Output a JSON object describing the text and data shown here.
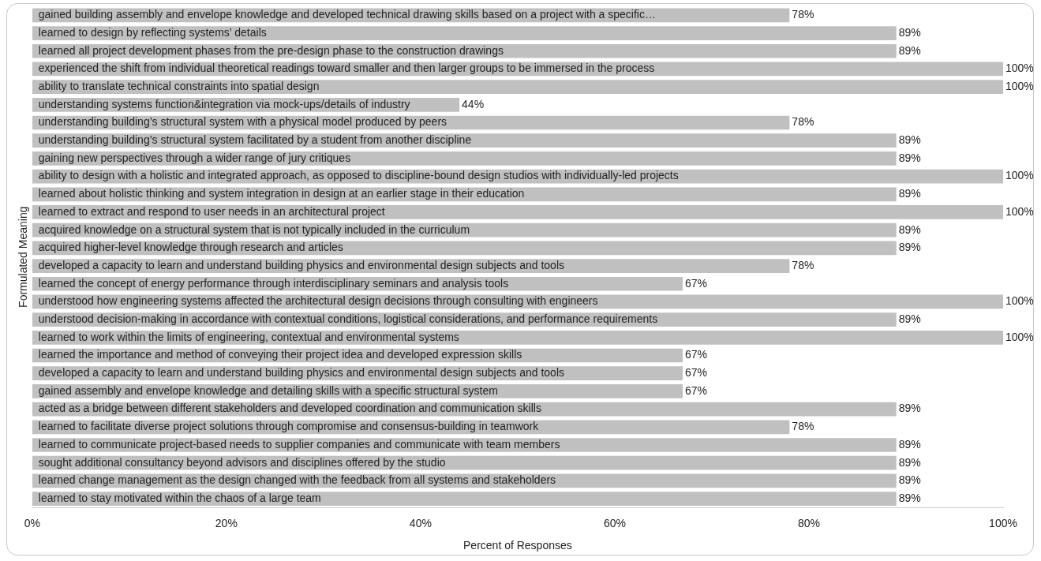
{
  "chart_data": {
    "type": "bar",
    "orientation": "horizontal",
    "xlabel": "Percent of Responses",
    "ylabel": "Formulated Meaning",
    "categories": [
      "gained building assembly and envelope knowledge and developed technical drawing skills based on a project with a specific…",
      "learned to design by reflecting systems’ details",
      "learned all project development phases from the pre-design phase to the construction drawings",
      "experienced the shift from individual theoretical readings toward smaller and then larger groups to be immersed in the process",
      "ability to translate technical constraints into spatial design",
      "understanding systems function&integration via mock-ups/details of industry",
      "understanding building’s structural system with a physical model produced by peers",
      "understanding building’s structural system facilitated by a student from another discipline",
      "gaining new perspectives through a wider range of jury critiques",
      "ability to design with a holistic and integrated approach, as opposed to discipline-bound design studios with individually-led projects",
      "learned about holistic thinking and system integration in design at an earlier stage in their education",
      "learned to extract and respond to user needs in an architectural project",
      "acquired knowledge on a structural system that is not typically included in the curriculum",
      "acquired higher-level knowledge through research and articles",
      "developed a capacity to learn and understand building physics and environmental design subjects and tools",
      "learned the concept of energy performance through interdisciplinary seminars and analysis tools",
      "understood how engineering systems affected the architectural design decisions through consulting with engineers",
      "understood decision-making in accordance with contextual conditions, logistical considerations, and performance requirements",
      "learned to work within the limits of engineering, contextual and environmental systems",
      "learned the importance and method of conveying their project idea and developed expression skills",
      "developed a capacity to learn and understand building physics and environmental design subjects and tools",
      "gained assembly and envelope knowledge and detailing skills with a specific structural system",
      "acted as a bridge between different stakeholders and developed coordination and communication skills",
      "learned to facilitate diverse project solutions through compromise and consensus-building in teamwork",
      "learned to communicate project-based needs to supplier companies and communicate with team members",
      "sought additional consultancy beyond advisors and disciplines offered by the studio",
      "learned change management as the design changed with the feedback from all systems and stakeholders",
      "learned to stay motivated within the chaos of a large team"
    ],
    "values": [
      78,
      89,
      89,
      100,
      100,
      44,
      78,
      89,
      89,
      100,
      89,
      100,
      89,
      89,
      78,
      67,
      100,
      89,
      100,
      67,
      67,
      67,
      89,
      78,
      89,
      89,
      89,
      89
    ],
    "value_labels": [
      "78%",
      "89%",
      "89%",
      "100%",
      "100%",
      "44%",
      "78%",
      "89%",
      "89%",
      "100%",
      "89%",
      "100%",
      "89%",
      "89%",
      "78%",
      "67%",
      "100%",
      "89%",
      "100%",
      "67%",
      "67%",
      "67%",
      "89%",
      "78%",
      "89%",
      "89%",
      "89%",
      "89%"
    ],
    "color": "#c0c0c0",
    "xlim": [
      0,
      100
    ],
    "xticks": [
      {
        "value": 0,
        "label": "0%"
      },
      {
        "value": 20,
        "label": "20%"
      },
      {
        "value": 40,
        "label": "40%"
      },
      {
        "value": 60,
        "label": "60%"
      },
      {
        "value": 80,
        "label": "80%"
      },
      {
        "value": 100,
        "label": "100%"
      }
    ],
    "grid": false,
    "legend": false
  }
}
